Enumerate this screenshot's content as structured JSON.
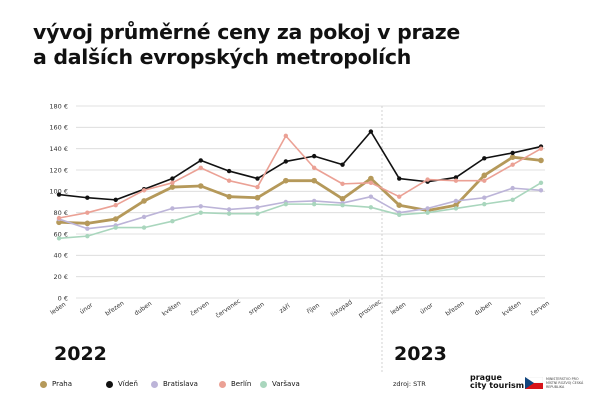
{
  "title": {
    "line1": "vývoj průměrné ceny za pokoj v praze",
    "line2": "a dalších evropských metropolích"
  },
  "years": [
    "2022",
    "2023"
  ],
  "source_text": "zdroj: STR",
  "logo": {
    "line1": "prague",
    "line2": "city tourism",
    "ministry_text": "MINISTERSTVO PRO MÍSTNÍ ROZVOJ ČESKÁ REPUBLIKA"
  },
  "chart_data": {
    "type": "line",
    "title": "vývoj průměrné ceny za pokoj v praze a dalších evropských metropolích",
    "xlabel": "",
    "ylabel": "",
    "ylim": [
      0,
      180
    ],
    "y_ticks": [
      0,
      20,
      40,
      60,
      80,
      100,
      120,
      140,
      160,
      180
    ],
    "y_tick_labels": [
      "0 €",
      "20 €",
      "40 €",
      "60 €",
      "80 €",
      "100 €",
      "120 €",
      "140 €",
      "160 €",
      "180 €"
    ],
    "grid": true,
    "legend_position": "bottom",
    "categories": [
      "leden",
      "únor",
      "březen",
      "duben",
      "květen",
      "červen",
      "červenec",
      "srpen",
      "září",
      "říjen",
      "listopad",
      "prosinec",
      "leden",
      "únor",
      "březen",
      "duben",
      "květen",
      "červen"
    ],
    "series": [
      {
        "name": "Praha",
        "color": "#b5995a",
        "values": [
          71,
          70,
          74,
          91,
          104,
          105,
          95,
          94,
          110,
          110,
          93,
          112,
          87,
          82,
          87,
          115,
          132,
          129
        ]
      },
      {
        "name": "Vídeň",
        "color": "#111111",
        "values": [
          97,
          94,
          92,
          102,
          112,
          129,
          119,
          112,
          128,
          133,
          125,
          156,
          112,
          109,
          113,
          131,
          136,
          142
        ]
      },
      {
        "name": "Bratislava",
        "color": "#bcb4d8",
        "values": [
          74,
          65,
          68,
          76,
          84,
          86,
          83,
          85,
          90,
          91,
          89,
          95,
          80,
          84,
          91,
          94,
          103,
          101
        ]
      },
      {
        "name": "Berlín",
        "color": "#eba195",
        "values": [
          75,
          80,
          87,
          101,
          108,
          122,
          110,
          104,
          152,
          122,
          107,
          108,
          95,
          111,
          110,
          110,
          125,
          140
        ]
      },
      {
        "name": "Varšava",
        "color": "#a9d6bd",
        "values": [
          56,
          58,
          66,
          66,
          72,
          80,
          79,
          79,
          88,
          88,
          87,
          85,
          78,
          80,
          84,
          88,
          92,
          108
        ]
      }
    ]
  }
}
